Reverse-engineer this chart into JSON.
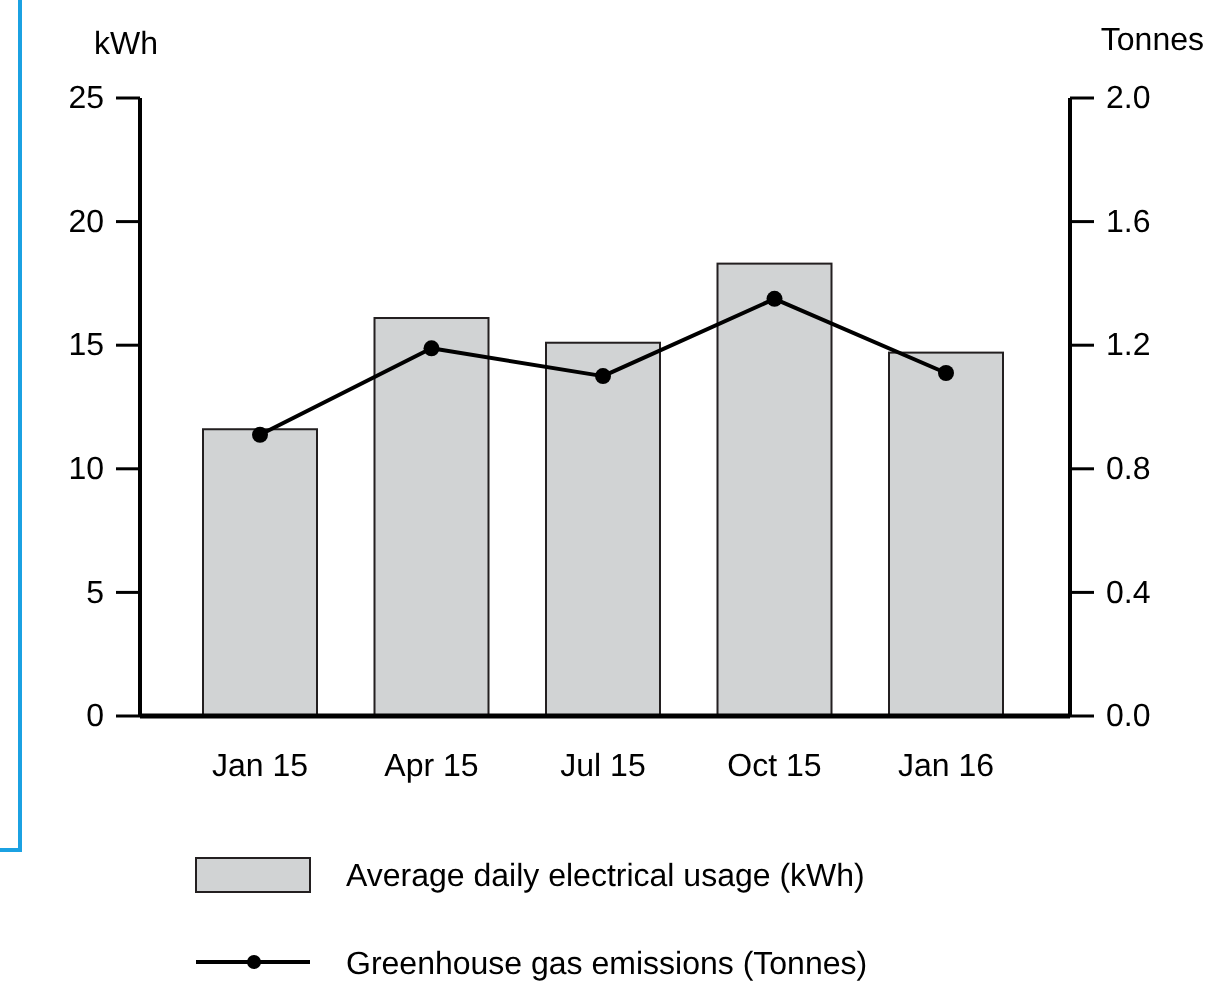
{
  "chart_data": {
    "type": "bar",
    "ylabel": "kWh",
    "y2label": "Tonnes",
    "categories": [
      "Jan 15",
      "Apr 15",
      "Jul 15",
      "Oct 15",
      "Jan 16"
    ],
    "series": [
      {
        "name": "Average daily electrical usage (kWh)",
        "color": "#d1d3d4",
        "values": [
          11.6,
          16.1,
          15.1,
          18.3,
          14.7
        ]
      },
      {
        "name": "Greenhouse gas emissions (Tonnes)",
        "type": "line",
        "axis": "y2",
        "color": "#000000",
        "marker": "circle",
        "values": [
          0.91,
          1.19,
          1.1,
          1.35,
          1.11
        ]
      }
    ],
    "ylim": [
      0,
      25
    ],
    "yticks": [
      0,
      5,
      10,
      15,
      20,
      25
    ],
    "y2lim": [
      0,
      2
    ],
    "y2ticks": [
      {
        "value": 0,
        "label": "0.0"
      },
      {
        "value": 0.4,
        "label": "0.4"
      },
      {
        "value": 0.8,
        "label": "0.8"
      },
      {
        "value": 1.2,
        "label": "1.2"
      },
      {
        "value": 1.6,
        "label": "1.6"
      },
      {
        "value": 2,
        "label": "2.0"
      }
    ],
    "grid": false,
    "legend": "bottom"
  }
}
